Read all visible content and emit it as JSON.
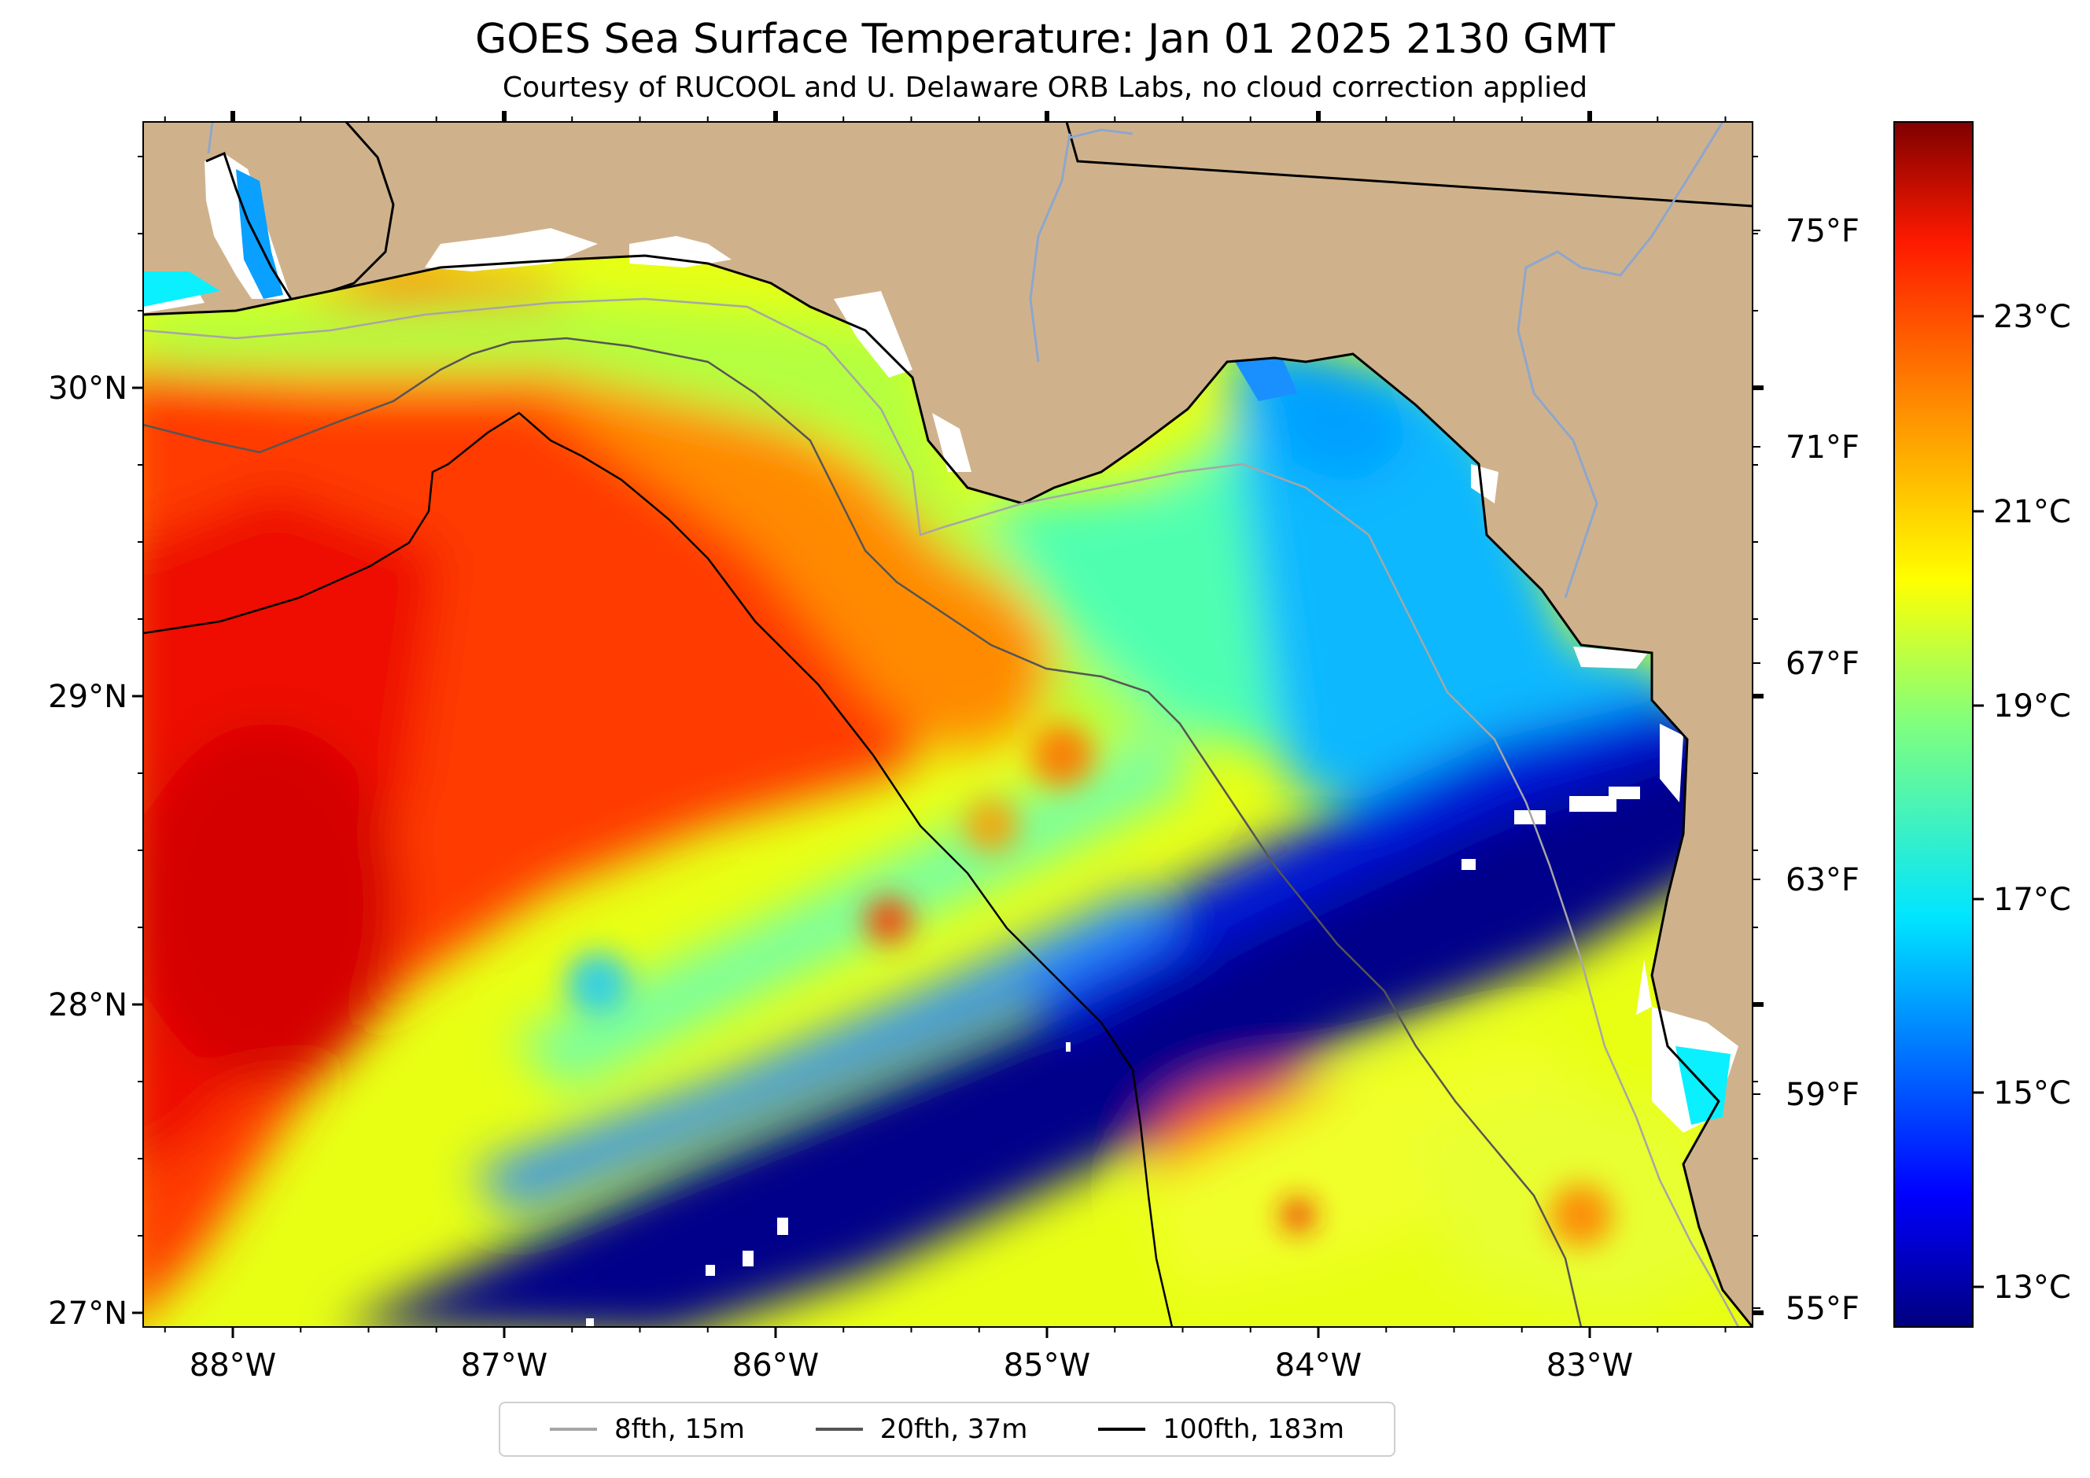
{
  "title": "GOES Sea Surface Temperature: Jan 01 2025 2130 GMT",
  "subtitle": "Courtesy of RUCOOL and U. Delaware ORB Labs, no cloud correction applied",
  "map": {
    "lat_ticks": [
      "30°N",
      "29°N",
      "28°N",
      "27°N"
    ],
    "lon_ticks": [
      "88°W",
      "87°W",
      "86°W",
      "85°W",
      "84°W",
      "83°W"
    ],
    "fahrenheit_ticks": [
      "75°F",
      "71°F",
      "67°F",
      "63°F",
      "59°F",
      "55°F"
    ],
    "colorbar_ticks": [
      "23°C",
      "21°C",
      "19°C",
      "17°C",
      "15°C",
      "13°C"
    ],
    "land_color": "#cfb28c",
    "colormap": "jet"
  },
  "legend": {
    "items": [
      {
        "label": "8fth, 15m",
        "color": "#a6a6a6"
      },
      {
        "label": "20fth, 37m",
        "color": "#555555"
      },
      {
        "label": "100fth, 183m",
        "color": "#000000"
      }
    ]
  }
}
